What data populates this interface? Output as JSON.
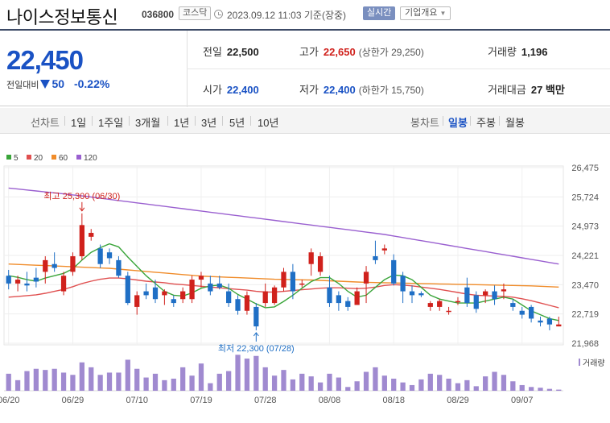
{
  "header": {
    "title": "나이스정보통신",
    "code": "036800",
    "market": "코스닥",
    "datetime": "2023.09.12 11:03",
    "basis": "기준(장중)",
    "live_label": "실시간",
    "overview_label": "기업개요"
  },
  "summary": {
    "price": "22,450",
    "change_label": "전일대비",
    "change": "50",
    "change_pct": "-0.22%",
    "prev_close_label": "전일",
    "prev_close": "22,500",
    "high_label": "고가",
    "high": "22,650",
    "upper_limit_label": "(상한가 29,250)",
    "volume_label": "거래량",
    "volume": "1,196",
    "open_label": "시가",
    "open": "22,400",
    "low_label": "저가",
    "low": "22,400",
    "lower_limit_label": "(하한가 15,750)",
    "value_label": "거래대금",
    "value": "27 백만"
  },
  "tabs": {
    "line_chart": "선차트",
    "periods": [
      "1일",
      "1주일",
      "3개월",
      "1년",
      "3년",
      "5년",
      "10년"
    ],
    "candle_chart": "봉차트",
    "candle_periods": [
      "일봉",
      "주봉",
      "월봉"
    ],
    "selected_candle": "일봉"
  },
  "colors": {
    "up": "#d0211c",
    "down": "#1f6fc5",
    "ma5": "#3aa53a",
    "ma20": "#e05050",
    "ma60": "#f08c2a",
    "ma120": "#9a60d0",
    "volume": "#a08ad0"
  },
  "chart_data": {
    "type": "candlestick",
    "legend": [
      {
        "name": "5",
        "color": "#3aa53a"
      },
      {
        "name": "20",
        "color": "#e05050"
      },
      {
        "name": "60",
        "color": "#f08c2a"
      },
      {
        "name": "120",
        "color": "#9a60d0"
      }
    ],
    "y_ticks": [
      "26,475",
      "25,724",
      "24,973",
      "24,221",
      "23,470",
      "22,719",
      "21,968"
    ],
    "y_tick_values": [
      26475,
      25724,
      24973,
      24221,
      23470,
      22719,
      21968
    ],
    "ylim": [
      21968,
      26475
    ],
    "x_labels": [
      "06/20",
      "06/29",
      "07/10",
      "07/19",
      "07/28",
      "08/08",
      "08/18",
      "08/29",
      "09/07"
    ],
    "x_label_index": [
      0,
      7,
      14,
      21,
      28,
      35,
      42,
      49,
      56
    ],
    "max_label": "최고 25,300 (06/30)",
    "max_index": 8,
    "max_value": 25300,
    "min_label": "최저 22,300 (07/28)",
    "min_index": 27,
    "min_value": 22300,
    "volume_label": "거래량",
    "ohlc": [
      [
        23700,
        23850,
        23350,
        23500
      ],
      [
        23500,
        23700,
        23300,
        23600
      ],
      [
        23500,
        23800,
        23300,
        23450
      ],
      [
        23650,
        23900,
        23400,
        23550
      ],
      [
        23800,
        24200,
        23500,
        24100
      ],
      [
        24000,
        24300,
        23800,
        23900
      ],
      [
        23300,
        23800,
        23200,
        23700
      ],
      [
        23800,
        24300,
        23700,
        24200
      ],
      [
        24200,
        25300,
        24100,
        25000
      ],
      [
        24700,
        24900,
        24600,
        24800
      ],
      [
        24400,
        24500,
        23900,
        24000
      ],
      [
        24300,
        24400,
        24000,
        24150
      ],
      [
        24100,
        24200,
        23650,
        23700
      ],
      [
        23700,
        23800,
        22950,
        23000
      ],
      [
        22900,
        23300,
        22700,
        23200
      ],
      [
        23300,
        23500,
        23100,
        23200
      ],
      [
        23400,
        23600,
        23000,
        23100
      ],
      [
        23200,
        23350,
        22950,
        23300
      ],
      [
        23100,
        23200,
        22900,
        23000
      ],
      [
        23100,
        23400,
        23000,
        23300
      ],
      [
        23100,
        23700,
        23000,
        23600
      ],
      [
        23600,
        23800,
        23400,
        23700
      ],
      [
        23500,
        23700,
        23200,
        23300
      ],
      [
        23500,
        23700,
        23350,
        23400
      ],
      [
        23300,
        23500,
        22900,
        23000
      ],
      [
        23100,
        23200,
        22700,
        22800
      ],
      [
        22800,
        23300,
        22700,
        23200
      ],
      [
        22900,
        23000,
        22300,
        22400
      ],
      [
        23000,
        23500,
        22900,
        23300
      ],
      [
        23000,
        23450,
        22950,
        23400
      ],
      [
        23400,
        23900,
        23300,
        23800
      ],
      [
        23800,
        24000,
        23100,
        23300
      ],
      [
        23500,
        23600,
        23400,
        23500
      ],
      [
        24000,
        24400,
        23700,
        24300
      ],
      [
        23800,
        24300,
        23700,
        24200
      ],
      [
        23400,
        23700,
        22900,
        23000
      ],
      [
        23200,
        23300,
        22800,
        23000
      ],
      [
        23050,
        23150,
        22800,
        22900
      ],
      [
        22950,
        23400,
        22950,
        23300
      ],
      [
        23500,
        23950,
        23000,
        23800
      ],
      [
        24200,
        24600,
        24000,
        24100
      ],
      [
        24350,
        24500,
        24250,
        24400
      ],
      [
        24100,
        24250,
        23450,
        23500
      ],
      [
        23700,
        23800,
        23000,
        23300
      ],
      [
        23300,
        23450,
        23000,
        23200
      ],
      [
        23250,
        23300,
        23150,
        23200
      ],
      [
        22900,
        23050,
        22800,
        23000
      ],
      [
        22900,
        23100,
        22800,
        23050
      ],
      [
        22800,
        22900,
        22700,
        22800
      ],
      [
        23050,
        23150,
        22950,
        23050
      ],
      [
        23400,
        23650,
        22900,
        23000
      ],
      [
        23200,
        23300,
        22750,
        22850
      ],
      [
        23200,
        23350,
        23000,
        23300
      ],
      [
        23300,
        23450,
        22950,
        23100
      ],
      [
        23300,
        23500,
        23100,
        23350
      ],
      [
        23000,
        23100,
        22800,
        22900
      ],
      [
        22800,
        22900,
        22600,
        22700
      ],
      [
        22900,
        22950,
        22500,
        22600
      ],
      [
        22550,
        22650,
        22400,
        22500
      ],
      [
        22600,
        22650,
        22300,
        22450
      ],
      [
        22400,
        22650,
        22400,
        22450
      ]
    ],
    "ma5": [
      23700,
      23660,
      23600,
      23560,
      23640,
      23700,
      23760,
      23880,
      24100,
      24300,
      24420,
      24520,
      24440,
      24180,
      23940,
      23700,
      23500,
      23300,
      23200,
      23180,
      23260,
      23380,
      23440,
      23460,
      23380,
      23220,
      23100,
      22980,
      22880,
      22900,
      23040,
      23200,
      23380,
      23550,
      23650,
      23650,
      23500,
      23300,
      23150,
      23200,
      23400,
      23600,
      23720,
      23700,
      23600,
      23400,
      23200,
      23100,
      23050,
      23000,
      23000,
      23000,
      23050,
      23100,
      23150,
      23100,
      22950,
      22800,
      22700,
      22600,
      22550
    ],
    "ma20": [
      23150,
      23170,
      23190,
      23210,
      23250,
      23300,
      23350,
      23420,
      23500,
      23560,
      23610,
      23640,
      23640,
      23620,
      23590,
      23560,
      23540,
      23520,
      23490,
      23470,
      23450,
      23430,
      23410,
      23390,
      23370,
      23350,
      23330,
      23300,
      23280,
      23280,
      23300,
      23320,
      23340,
      23360,
      23380,
      23390,
      23390,
      23380,
      23370,
      23380,
      23410,
      23450,
      23470,
      23460,
      23440,
      23410,
      23380,
      23350,
      23310,
      23270,
      23230,
      23200,
      23190,
      23180,
      23170,
      23150,
      23110,
      23060,
      23000,
      22940,
      22880
    ],
    "ma60": [
      24000,
      23990,
      23980,
      23970,
      23960,
      23950,
      23940,
      23930,
      23920,
      23910,
      23900,
      23890,
      23870,
      23850,
      23830,
      23810,
      23790,
      23770,
      23750,
      23730,
      23710,
      23690,
      23680,
      23670,
      23660,
      23650,
      23640,
      23630,
      23620,
      23610,
      23605,
      23600,
      23595,
      23590,
      23580,
      23570,
      23560,
      23550,
      23540,
      23530,
      23525,
      23520,
      23515,
      23510,
      23505,
      23500,
      23495,
      23490,
      23485,
      23480,
      23475,
      23470,
      23465,
      23460,
      23455,
      23450,
      23445,
      23440,
      23430,
      23420,
      23410
    ],
    "ma120": [
      25950,
      25925,
      25900,
      25875,
      25850,
      25825,
      25800,
      25775,
      25750,
      25720,
      25690,
      25660,
      25630,
      25600,
      25570,
      25540,
      25510,
      25480,
      25450,
      25420,
      25390,
      25360,
      25330,
      25300,
      25270,
      25240,
      25210,
      25180,
      25150,
      25120,
      25090,
      25060,
      25030,
      25000,
      24970,
      24940,
      24910,
      24880,
      24850,
      24820,
      24790,
      24760,
      24720,
      24680,
      24640,
      24600,
      24560,
      24520,
      24480,
      24440,
      24400,
      24360,
      24320,
      24280,
      24240,
      24200,
      24160,
      24120,
      24080,
      24040,
      24000
    ],
    "volume": [
      0.45,
      0.28,
      0.52,
      0.58,
      0.55,
      0.58,
      0.48,
      0.42,
      0.75,
      0.62,
      0.42,
      0.48,
      0.48,
      0.82,
      0.58,
      0.35,
      0.45,
      0.28,
      0.32,
      0.62,
      0.4,
      0.72,
      0.2,
      0.45,
      0.52,
      0.95,
      0.85,
      0.92,
      0.62,
      0.4,
      0.55,
      0.3,
      0.45,
      0.38,
      0.22,
      0.45,
      0.35,
      0.1,
      0.25,
      0.5,
      0.62,
      0.4,
      0.32,
      0.22,
      0.15,
      0.3,
      0.45,
      0.42,
      0.32,
      0.2,
      0.28,
      0.12,
      0.38,
      0.5,
      0.42,
      0.25,
      0.15,
      0.1,
      0.08,
      0.05,
      0.03
    ]
  }
}
